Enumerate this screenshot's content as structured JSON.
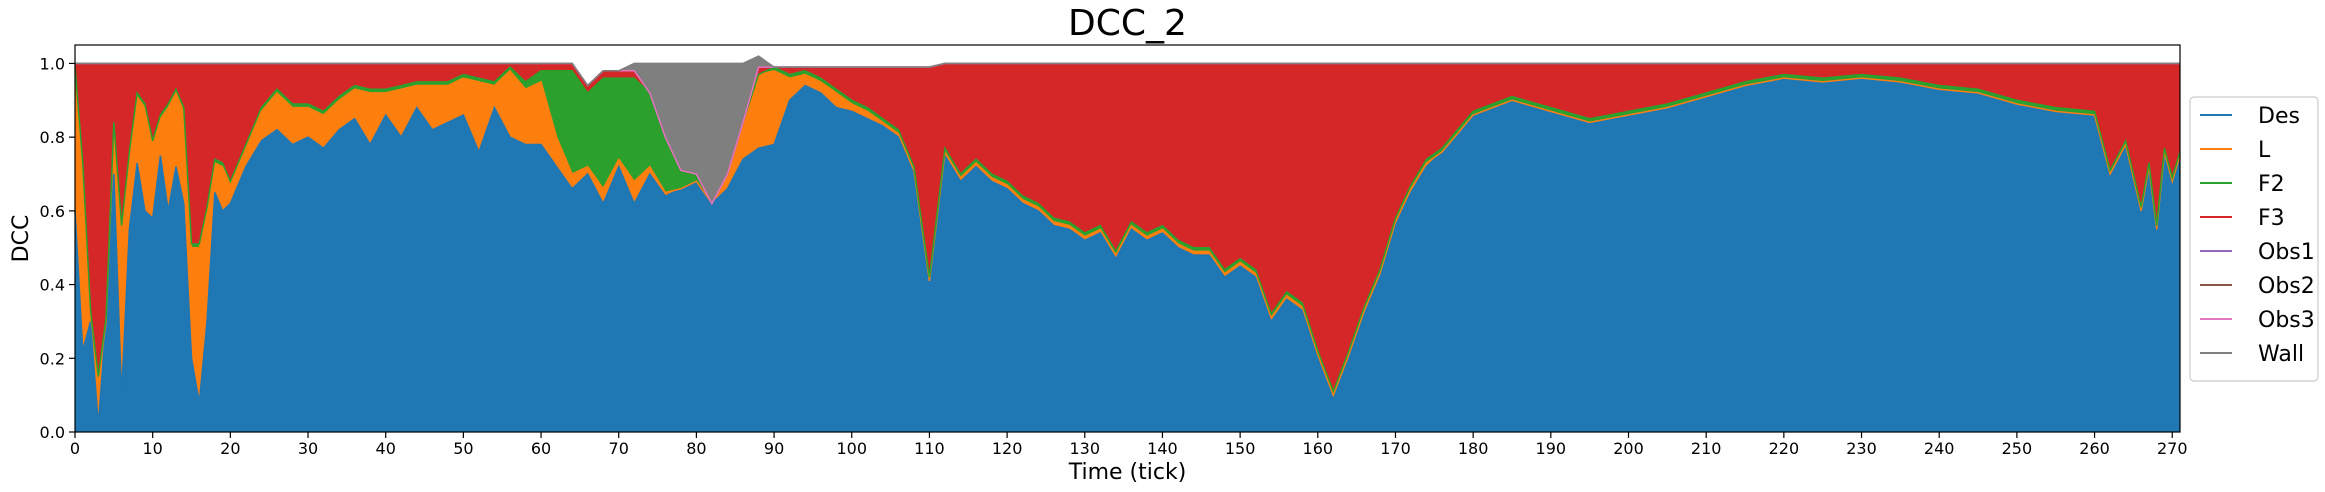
{
  "chart_data": {
    "type": "area",
    "title": "DCC_2",
    "xlabel": "Time (tick)",
    "ylabel": "DCC",
    "xlim": [
      0,
      271
    ],
    "ylim": [
      0,
      1.05
    ],
    "xticks": [
      0,
      10,
      20,
      30,
      40,
      50,
      60,
      70,
      80,
      90,
      100,
      110,
      120,
      130,
      140,
      150,
      160,
      170,
      180,
      190,
      200,
      210,
      220,
      230,
      240,
      250,
      260,
      270
    ],
    "yticks": [
      "0.0",
      "0.2",
      "0.4",
      "0.6",
      "0.8",
      "1.0"
    ],
    "grid": false,
    "stacked": true,
    "legend_position": "right",
    "series": [
      {
        "name": "Des",
        "color": "#1f77b4",
        "x": [
          0,
          1,
          2,
          3,
          4,
          5,
          6,
          7,
          8,
          9,
          10,
          11,
          12,
          13,
          14,
          15,
          16,
          17,
          18,
          19,
          20,
          22,
          24,
          26,
          28,
          30,
          32,
          34,
          36,
          38,
          40,
          42,
          44,
          46,
          48,
          50,
          52,
          54,
          56,
          58,
          60,
          62,
          64,
          66,
          68,
          70,
          72,
          74,
          76,
          78,
          80,
          82,
          84,
          86,
          88,
          90,
          92,
          94,
          96,
          98,
          100,
          102,
          104,
          106,
          108,
          110,
          112,
          114,
          116,
          118,
          120,
          122,
          124,
          126,
          128,
          130,
          132,
          134,
          136,
          138,
          140,
          142,
          144,
          146,
          148,
          150,
          152,
          154,
          156,
          158,
          160,
          162,
          164,
          166,
          168,
          170,
          172,
          174,
          176,
          178,
          180,
          185,
          190,
          195,
          200,
          205,
          210,
          215,
          220,
          225,
          230,
          235,
          240,
          245,
          250,
          255,
          260,
          262,
          264,
          266,
          267,
          268,
          269,
          270,
          271
        ],
        "values": [
          0.6,
          0.22,
          0.3,
          0.02,
          0.3,
          0.7,
          0.1,
          0.55,
          0.73,
          0.6,
          0.58,
          0.75,
          0.6,
          0.72,
          0.62,
          0.2,
          0.08,
          0.3,
          0.65,
          0.6,
          0.62,
          0.72,
          0.79,
          0.82,
          0.78,
          0.8,
          0.77,
          0.82,
          0.85,
          0.78,
          0.86,
          0.8,
          0.88,
          0.82,
          0.84,
          0.86,
          0.76,
          0.88,
          0.8,
          0.78,
          0.78,
          0.72,
          0.66,
          0.7,
          0.62,
          0.72,
          0.62,
          0.7,
          0.64,
          0.66,
          0.68,
          0.62,
          0.66,
          0.74,
          0.77,
          0.78,
          0.9,
          0.94,
          0.92,
          0.88,
          0.87,
          0.85,
          0.83,
          0.8,
          0.7,
          0.4,
          0.75,
          0.68,
          0.72,
          0.68,
          0.66,
          0.62,
          0.6,
          0.56,
          0.55,
          0.52,
          0.54,
          0.47,
          0.55,
          0.52,
          0.54,
          0.5,
          0.48,
          0.48,
          0.42,
          0.45,
          0.42,
          0.3,
          0.36,
          0.33,
          0.2,
          0.09,
          0.2,
          0.32,
          0.42,
          0.56,
          0.65,
          0.72,
          0.76,
          0.81,
          0.86,
          0.9,
          0.87,
          0.84,
          0.86,
          0.88,
          0.91,
          0.94,
          0.96,
          0.95,
          0.96,
          0.95,
          0.93,
          0.92,
          0.89,
          0.87,
          0.86,
          0.7,
          0.78,
          0.6,
          0.72,
          0.55,
          0.76,
          0.68,
          0.75
        ]
      },
      {
        "name": "L",
        "color": "#ff7f0e",
        "x": [
          0,
          1,
          2,
          3,
          4,
          5,
          6,
          7,
          8,
          9,
          10,
          11,
          12,
          13,
          14,
          15,
          16,
          17,
          18,
          19,
          20,
          22,
          24,
          26,
          28,
          30,
          32,
          34,
          36,
          38,
          40,
          42,
          44,
          46,
          48,
          50,
          52,
          54,
          56,
          58,
          60,
          62,
          64,
          66,
          68,
          70,
          72,
          74,
          76,
          78,
          80,
          82,
          84,
          86,
          88,
          90,
          92,
          94,
          96,
          98,
          100,
          102,
          104,
          106,
          108,
          110,
          112,
          114,
          116,
          118,
          120,
          122,
          124,
          126,
          128,
          130,
          132,
          134,
          136,
          138,
          140,
          142,
          144,
          146,
          148,
          150,
          152,
          154,
          156,
          158,
          160,
          162,
          164,
          166,
          168,
          170,
          172,
          174,
          176,
          178,
          180,
          185,
          190,
          195,
          200,
          205,
          210,
          215,
          220,
          225,
          230,
          235,
          240,
          245,
          250,
          255,
          260,
          262,
          264,
          266,
          267,
          268,
          269,
          270,
          271
        ],
        "values": [
          0.38,
          0.5,
          0.02,
          0.12,
          0.0,
          0.13,
          0.45,
          0.2,
          0.18,
          0.28,
          0.2,
          0.1,
          0.28,
          0.2,
          0.25,
          0.3,
          0.42,
          0.3,
          0.08,
          0.12,
          0.05,
          0.05,
          0.08,
          0.1,
          0.1,
          0.08,
          0.09,
          0.08,
          0.08,
          0.14,
          0.06,
          0.13,
          0.06,
          0.12,
          0.1,
          0.1,
          0.19,
          0.06,
          0.18,
          0.15,
          0.17,
          0.08,
          0.04,
          0.02,
          0.04,
          0.02,
          0.06,
          0.02,
          0.01,
          0.0,
          0.0,
          0.0,
          0.04,
          0.1,
          0.2,
          0.2,
          0.06,
          0.03,
          0.03,
          0.04,
          0.02,
          0.02,
          0.01,
          0.01,
          0.01,
          0.01,
          0.01,
          0.01,
          0.01,
          0.01,
          0.01,
          0.01,
          0.01,
          0.01,
          0.01,
          0.01,
          0.01,
          0.01,
          0.01,
          0.01,
          0.01,
          0.01,
          0.01,
          0.01,
          0.01,
          0.01,
          0.01,
          0.01,
          0.01,
          0.01,
          0.01,
          0.01,
          0.01,
          0.01,
          0.01,
          0.01,
          0.01,
          0.01,
          0.0,
          0.0,
          0.0,
          0.0,
          0.0,
          0.0,
          0.0,
          0.0,
          0.0,
          0.0,
          0.0,
          0.0,
          0.0,
          0.0,
          0.0,
          0.0,
          0.0,
          0.0,
          0.0,
          0.0,
          0.0,
          0.0,
          0.0,
          0.0,
          0.0,
          0.0,
          0.0
        ]
      },
      {
        "name": "F2",
        "color": "#2ca02c",
        "x": [
          0,
          1,
          2,
          3,
          4,
          5,
          6,
          7,
          8,
          9,
          10,
          11,
          12,
          13,
          14,
          15,
          16,
          17,
          18,
          19,
          20,
          22,
          24,
          26,
          28,
          30,
          32,
          34,
          36,
          38,
          40,
          42,
          44,
          46,
          48,
          50,
          52,
          54,
          56,
          58,
          60,
          62,
          64,
          66,
          68,
          70,
          72,
          74,
          76,
          78,
          80,
          82,
          84,
          86,
          88,
          90,
          92,
          94,
          96,
          98,
          100,
          102,
          104,
          106,
          108,
          110,
          112,
          114,
          116,
          118,
          120,
          122,
          124,
          126,
          128,
          130,
          132,
          134,
          136,
          138,
          140,
          142,
          144,
          146,
          148,
          150,
          152,
          154,
          156,
          158,
          160,
          162,
          164,
          166,
          168,
          170,
          172,
          174,
          176,
          178,
          180,
          185,
          190,
          195,
          200,
          205,
          210,
          215,
          220,
          225,
          230,
          235,
          240,
          245,
          250,
          255,
          260,
          262,
          264,
          266,
          267,
          268,
          269,
          270,
          271
        ],
        "values": [
          0.01,
          0.01,
          0.01,
          0.01,
          0.01,
          0.01,
          0.01,
          0.01,
          0.01,
          0.01,
          0.01,
          0.01,
          0.01,
          0.01,
          0.01,
          0.01,
          0.01,
          0.01,
          0.01,
          0.01,
          0.01,
          0.01,
          0.01,
          0.01,
          0.01,
          0.01,
          0.01,
          0.01,
          0.01,
          0.01,
          0.01,
          0.01,
          0.01,
          0.01,
          0.01,
          0.01,
          0.01,
          0.01,
          0.01,
          0.02,
          0.03,
          0.18,
          0.28,
          0.2,
          0.3,
          0.22,
          0.28,
          0.2,
          0.15,
          0.05,
          0.02,
          0.0,
          0.0,
          0.0,
          0.0,
          0.01,
          0.01,
          0.01,
          0.01,
          0.01,
          0.01,
          0.01,
          0.01,
          0.01,
          0.01,
          0.01,
          0.01,
          0.01,
          0.01,
          0.01,
          0.01,
          0.01,
          0.01,
          0.01,
          0.01,
          0.01,
          0.01,
          0.01,
          0.01,
          0.01,
          0.01,
          0.01,
          0.01,
          0.01,
          0.01,
          0.01,
          0.01,
          0.01,
          0.01,
          0.01,
          0.01,
          0.01,
          0.01,
          0.01,
          0.01,
          0.01,
          0.01,
          0.01,
          0.01,
          0.01,
          0.01,
          0.01,
          0.01,
          0.01,
          0.01,
          0.01,
          0.01,
          0.01,
          0.01,
          0.01,
          0.01,
          0.01,
          0.01,
          0.01,
          0.01,
          0.01,
          0.01,
          0.01,
          0.01,
          0.01,
          0.01,
          0.01,
          0.01,
          0.01,
          0.01
        ]
      },
      {
        "name": "F3",
        "color": "#d62728",
        "x": [
          0,
          1,
          2,
          3,
          4,
          5,
          6,
          7,
          8,
          9,
          10,
          11,
          12,
          13,
          14,
          15,
          16,
          17,
          18,
          19,
          20,
          22,
          24,
          26,
          28,
          30,
          32,
          34,
          36,
          38,
          40,
          42,
          44,
          46,
          48,
          50,
          52,
          54,
          56,
          58,
          60,
          62,
          64,
          66,
          68,
          70,
          72,
          74,
          76,
          78,
          80,
          82,
          84,
          86,
          88,
          90,
          92,
          94,
          96,
          98,
          100,
          102,
          104,
          106,
          108,
          110,
          112,
          114,
          116,
          118,
          120,
          122,
          124,
          126,
          128,
          130,
          132,
          134,
          136,
          138,
          140,
          142,
          144,
          146,
          148,
          150,
          152,
          154,
          156,
          158,
          160,
          162,
          164,
          166,
          168,
          170,
          172,
          174,
          176,
          178,
          180,
          185,
          190,
          195,
          200,
          205,
          210,
          215,
          220,
          225,
          230,
          235,
          240,
          245,
          250,
          255,
          260,
          262,
          264,
          266,
          267,
          268,
          269,
          270,
          271
        ],
        "values": [
          0.01,
          0.27,
          0.67,
          0.85,
          0.69,
          0.16,
          0.44,
          0.24,
          0.08,
          0.11,
          0.21,
          0.14,
          0.11,
          0.07,
          0.12,
          0.49,
          0.49,
          0.39,
          0.26,
          0.27,
          0.32,
          0.22,
          0.12,
          0.07,
          0.11,
          0.11,
          0.13,
          0.09,
          0.06,
          0.07,
          0.07,
          0.06,
          0.05,
          0.05,
          0.05,
          0.03,
          0.04,
          0.05,
          0.01,
          0.05,
          0.02,
          0.02,
          0.02,
          0.02,
          0.02,
          0.02,
          0.02,
          0.0,
          0.0,
          0.0,
          0.0,
          0.0,
          0.0,
          0.0,
          0.02,
          0.0,
          0.02,
          0.01,
          0.03,
          0.06,
          0.09,
          0.11,
          0.14,
          0.17,
          0.27,
          0.57,
          0.23,
          0.3,
          0.26,
          0.3,
          0.32,
          0.36,
          0.38,
          0.42,
          0.43,
          0.46,
          0.44,
          0.51,
          0.43,
          0.46,
          0.44,
          0.48,
          0.5,
          0.5,
          0.56,
          0.53,
          0.56,
          0.68,
          0.62,
          0.65,
          0.78,
          0.89,
          0.78,
          0.66,
          0.56,
          0.42,
          0.33,
          0.26,
          0.23,
          0.18,
          0.13,
          0.09,
          0.12,
          0.15,
          0.13,
          0.11,
          0.08,
          0.05,
          0.03,
          0.04,
          0.03,
          0.04,
          0.06,
          0.07,
          0.1,
          0.12,
          0.13,
          0.29,
          0.21,
          0.39,
          0.27,
          0.44,
          0.23,
          0.31,
          0.24
        ]
      },
      {
        "name": "Obs1",
        "color": "#9467bd",
        "x": [
          0,
          271
        ],
        "values": [
          0.0,
          0.0
        ]
      },
      {
        "name": "Obs2",
        "color": "#8c564b",
        "x": [
          0,
          271
        ],
        "values": [
          0.0,
          0.0
        ]
      },
      {
        "name": "Obs3",
        "color": "#e377c2",
        "x": [
          0,
          271
        ],
        "values": [
          0.0,
          0.0
        ]
      },
      {
        "name": "Wall",
        "color": "#7f7f7f",
        "x": [
          0,
          70,
          72,
          74,
          76,
          78,
          80,
          82,
          84,
          86,
          88,
          90,
          271
        ],
        "values": [
          0.0,
          0.0,
          0.02,
          0.08,
          0.2,
          0.29,
          0.3,
          0.38,
          0.3,
          0.16,
          0.03,
          0.0,
          0.0
        ]
      }
    ]
  }
}
